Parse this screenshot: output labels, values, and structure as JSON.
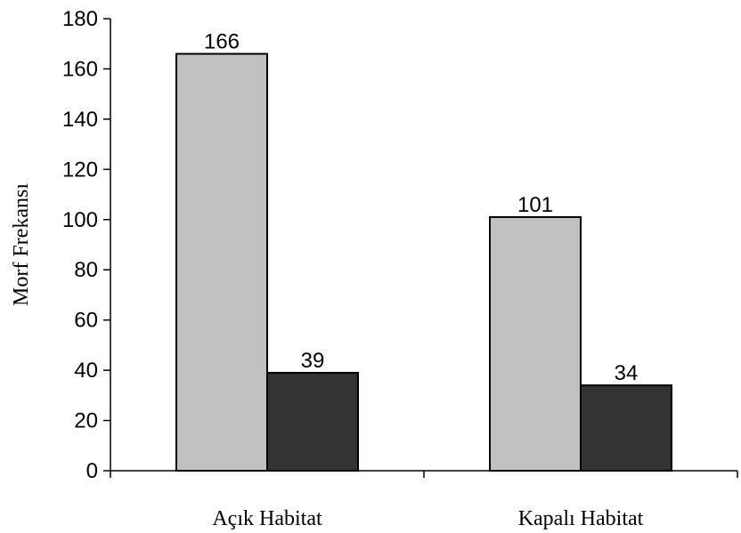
{
  "chart_data": {
    "type": "bar",
    "categories": [
      "Açık Habitat",
      "Kapalı Habitat"
    ],
    "series": [
      {
        "values": [
          166,
          101
        ],
        "color": "#c0c0c0"
      },
      {
        "values": [
          39,
          34
        ],
        "color": "#333333"
      }
    ],
    "ylabel": "Morf Frekansı",
    "ylim": [
      0,
      180
    ],
    "yticks": [
      0,
      20,
      40,
      60,
      80,
      100,
      120,
      140,
      160,
      180
    ],
    "data_labels": true,
    "grid": false
  }
}
